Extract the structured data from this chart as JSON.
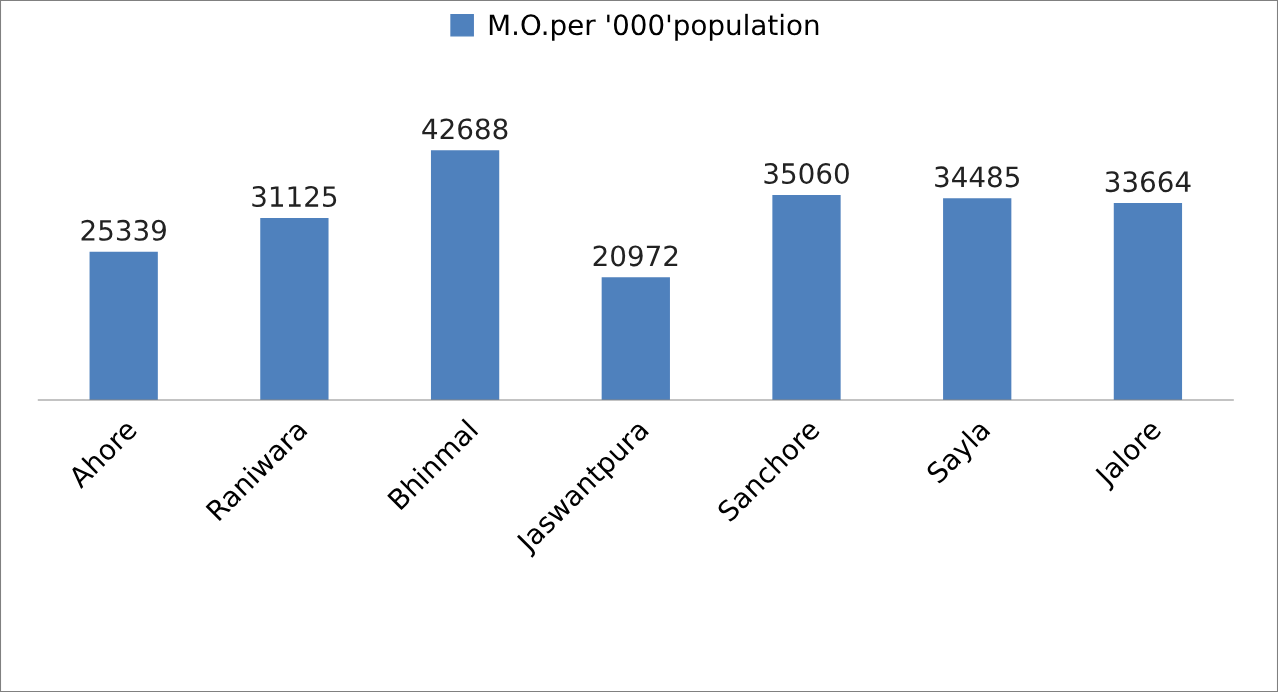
{
  "chart_data": {
    "type": "bar",
    "categories": [
      "Ahore",
      "Raniwara",
      "Bhinmal",
      "Jaswantpura",
      "Sanchore",
      "Sayla",
      "Jalore"
    ],
    "series": [
      {
        "name": "M.O.per '000'population",
        "color": "#4f81bd",
        "values": [
          25339,
          31125,
          42688,
          20972,
          35060,
          34485,
          33664
        ]
      }
    ],
    "data_labels": true,
    "legend": "top",
    "grid": false,
    "tick_labels": "x"
  }
}
